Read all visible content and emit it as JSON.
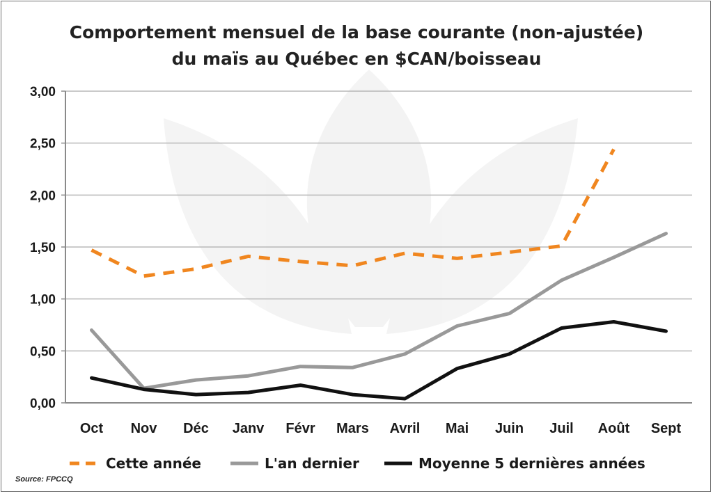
{
  "chart_data": {
    "type": "line",
    "title": [
      "Comportement mensuel de la base courante (non-ajustée)",
      "du maïs au Québec en $CAN/boisseau"
    ],
    "categories": [
      "Oct",
      "Nov",
      "Déc",
      "Janv",
      "Févr",
      "Mars",
      "Avril",
      "Mai",
      "Juin",
      "Juil",
      "Août",
      "Sept"
    ],
    "ylim": [
      0,
      3
    ],
    "yticks": [
      "0,00",
      "0,50",
      "1,00",
      "1,50",
      "2,00",
      "2,50",
      "3,00"
    ],
    "ytick_values": [
      0,
      0.5,
      1,
      1.5,
      2,
      2.5,
      3
    ],
    "grid": true,
    "legend_position": "bottom",
    "series": [
      {
        "name": "Cette année",
        "color": "#f0861f",
        "style": "dashed",
        "values": [
          1.47,
          1.22,
          1.29,
          1.41,
          1.36,
          1.32,
          1.44,
          1.39,
          1.45,
          1.51,
          2.44,
          null
        ]
      },
      {
        "name": "L'an dernier",
        "color": "#999999",
        "style": "solid",
        "values": [
          0.7,
          0.14,
          0.22,
          0.26,
          0.35,
          0.34,
          0.47,
          0.74,
          0.86,
          1.18,
          1.4,
          1.63
        ]
      },
      {
        "name": "Moyenne 5 dernières années",
        "color": "#111111",
        "style": "solid",
        "values": [
          0.24,
          0.13,
          0.08,
          0.1,
          0.17,
          0.08,
          0.04,
          0.33,
          0.47,
          0.72,
          0.78,
          0.69
        ]
      }
    ]
  },
  "source": "Source: FPCCQ"
}
